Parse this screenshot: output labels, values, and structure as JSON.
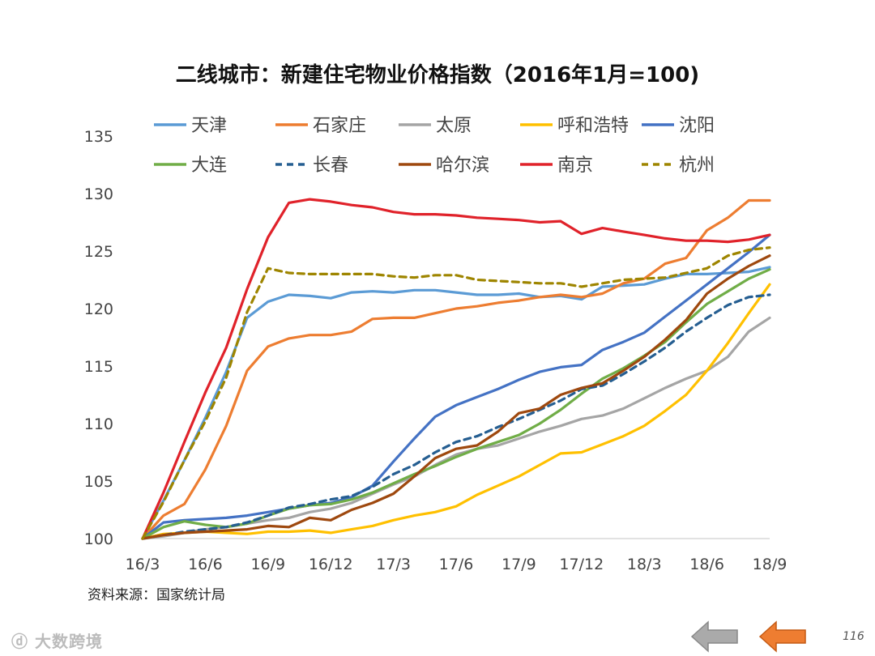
{
  "page": {
    "brand": "大数跨境",
    "page_number": "116",
    "source": "资料来源：国家统计局"
  },
  "icons": {
    "back": "arrow-left-icon-gray",
    "forward": "arrow-left-icon-orange",
    "brand_logo": "brand-logo-icon"
  },
  "colors": {
    "gray_arrow": "#aaaaaa",
    "orange_arrow": "#ee7d31"
  },
  "chart_data": {
    "type": "line",
    "title": "二线城市：新建住宅物业价格指数（2016年1月=100)",
    "xlabel": "",
    "ylabel": "",
    "ylim": [
      100,
      135
    ],
    "yticks": [
      "100",
      "105",
      "110",
      "115",
      "120",
      "125",
      "130",
      "135"
    ],
    "x": [
      "16/3",
      "16/4",
      "16/5",
      "16/6",
      "16/7",
      "16/8",
      "16/9",
      "16/10",
      "16/11",
      "16/12",
      "17/1",
      "17/2",
      "17/3",
      "17/4",
      "17/5",
      "17/6",
      "17/7",
      "17/8",
      "17/9",
      "17/10",
      "17/11",
      "17/12",
      "18/1",
      "18/2",
      "18/3",
      "18/4",
      "18/5",
      "18/6",
      "18/7",
      "18/8",
      "18/9"
    ],
    "xtick_labels": [
      "16/3",
      "16/6",
      "16/9",
      "16/12",
      "17/3",
      "17/6",
      "17/9",
      "17/12",
      "18/3",
      "18/6",
      "18/9"
    ],
    "series": [
      {
        "name": "天津",
        "color": "#5b9bd5",
        "dash": false,
        "values": [
          100,
          103.3,
          106.8,
          110.5,
          114.5,
          119.2,
          120.6,
          121.2,
          121.1,
          120.9,
          121.4,
          121.5,
          121.4,
          121.6,
          121.6,
          121.4,
          121.2,
          121.2,
          121.3,
          121.0,
          121.1,
          120.8,
          121.9,
          122.0,
          122.1,
          122.6,
          123.0,
          123.0,
          123.1,
          123.2,
          123.6
        ]
      },
      {
        "name": "石家庄",
        "color": "#ed7d31",
        "dash": false,
        "values": [
          100,
          102.0,
          103.0,
          106.0,
          109.8,
          114.6,
          116.7,
          117.4,
          117.7,
          117.7,
          118.0,
          119.1,
          119.2,
          119.2,
          119.6,
          120.0,
          120.2,
          120.5,
          120.7,
          121.0,
          121.2,
          121.0,
          121.3,
          122.2,
          122.6,
          123.9,
          124.4,
          126.8,
          127.9,
          129.4,
          129.4
        ]
      },
      {
        "name": "太原",
        "color": "#a5a5a5",
        "dash": false,
        "values": [
          100,
          100.2,
          100.5,
          100.8,
          101.0,
          101.3,
          101.6,
          101.8,
          102.3,
          102.6,
          103.1,
          103.9,
          104.7,
          105.4,
          106.4,
          107.3,
          107.8,
          108.1,
          108.7,
          109.3,
          109.8,
          110.4,
          110.7,
          111.3,
          112.2,
          113.1,
          113.9,
          114.6,
          115.8,
          118.0,
          119.2
        ]
      },
      {
        "name": "呼和浩特",
        "color": "#ffc000",
        "dash": false,
        "values": [
          100,
          100.4,
          100.5,
          100.6,
          100.5,
          100.4,
          100.6,
          100.6,
          100.7,
          100.5,
          100.8,
          101.1,
          101.6,
          102.0,
          102.3,
          102.8,
          103.8,
          104.6,
          105.4,
          106.4,
          107.4,
          107.5,
          108.2,
          108.9,
          109.8,
          111.1,
          112.5,
          114.6,
          117.0,
          119.6,
          122.1
        ]
      },
      {
        "name": "沈阳",
        "color": "#4472c4",
        "dash": false,
        "values": [
          100,
          101.4,
          101.6,
          101.7,
          101.8,
          102.0,
          102.3,
          102.6,
          102.9,
          103.1,
          103.6,
          104.6,
          106.7,
          108.7,
          110.6,
          111.6,
          112.3,
          113.0,
          113.8,
          114.5,
          114.9,
          115.1,
          116.4,
          117.1,
          117.9,
          119.3,
          120.7,
          122.1,
          123.5,
          124.9,
          126.4
        ]
      },
      {
        "name": "大连",
        "color": "#70ad47",
        "dash": false,
        "values": [
          100,
          101.0,
          101.5,
          101.2,
          101.0,
          101.3,
          102.0,
          102.6,
          102.9,
          103.0,
          103.4,
          104.0,
          104.8,
          105.6,
          106.3,
          107.1,
          107.8,
          108.4,
          109.0,
          110.0,
          111.2,
          112.6,
          113.9,
          114.8,
          115.9,
          117.1,
          118.8,
          120.4,
          121.5,
          122.6,
          123.4
        ]
      },
      {
        "name": "长春",
        "color": "#255e91",
        "dash": true,
        "values": [
          100,
          100.3,
          100.6,
          100.8,
          101.0,
          101.4,
          102.0,
          102.7,
          103.0,
          103.4,
          103.7,
          104.5,
          105.6,
          106.4,
          107.5,
          108.4,
          108.9,
          109.7,
          110.4,
          111.2,
          112.0,
          113.0,
          113.3,
          114.3,
          115.4,
          116.6,
          118.0,
          119.2,
          120.3,
          121.0,
          121.2
        ]
      },
      {
        "name": "哈尔滨",
        "color": "#9e480e",
        "dash": false,
        "values": [
          100,
          100.3,
          100.5,
          100.6,
          100.7,
          100.8,
          101.1,
          101.0,
          101.8,
          101.6,
          102.5,
          103.1,
          103.9,
          105.4,
          107.0,
          107.8,
          108.1,
          109.3,
          110.9,
          111.3,
          112.5,
          113.1,
          113.5,
          114.6,
          115.8,
          117.3,
          119.0,
          121.3,
          122.6,
          123.7,
          124.6
        ]
      },
      {
        "name": "南京",
        "color": "#e0222a",
        "dash": false,
        "values": [
          100,
          104.0,
          108.4,
          112.7,
          116.6,
          121.7,
          126.2,
          129.2,
          129.5,
          129.3,
          129.0,
          128.8,
          128.4,
          128.2,
          128.2,
          128.1,
          127.9,
          127.8,
          127.7,
          127.5,
          127.6,
          126.5,
          127.0,
          126.7,
          126.4,
          126.1,
          125.9,
          125.9,
          125.8,
          126.0,
          126.4
        ]
      },
      {
        "name": "杭州",
        "color": "#9e8500",
        "dash": true,
        "values": [
          100,
          103.2,
          106.8,
          110.2,
          114.0,
          119.7,
          123.5,
          123.1,
          123.0,
          123.0,
          123.0,
          123.0,
          122.8,
          122.7,
          122.9,
          122.9,
          122.5,
          122.4,
          122.3,
          122.2,
          122.2,
          121.9,
          122.2,
          122.5,
          122.6,
          122.7,
          123.1,
          123.5,
          124.6,
          125.1,
          125.3
        ]
      }
    ],
    "legend": [
      "天津",
      "石家庄",
      "太原",
      "呼和浩特",
      "沈阳",
      "大连",
      "长春",
      "哈尔滨",
      "南京",
      "杭州"
    ],
    "grid": false,
    "legend_position": "top"
  }
}
